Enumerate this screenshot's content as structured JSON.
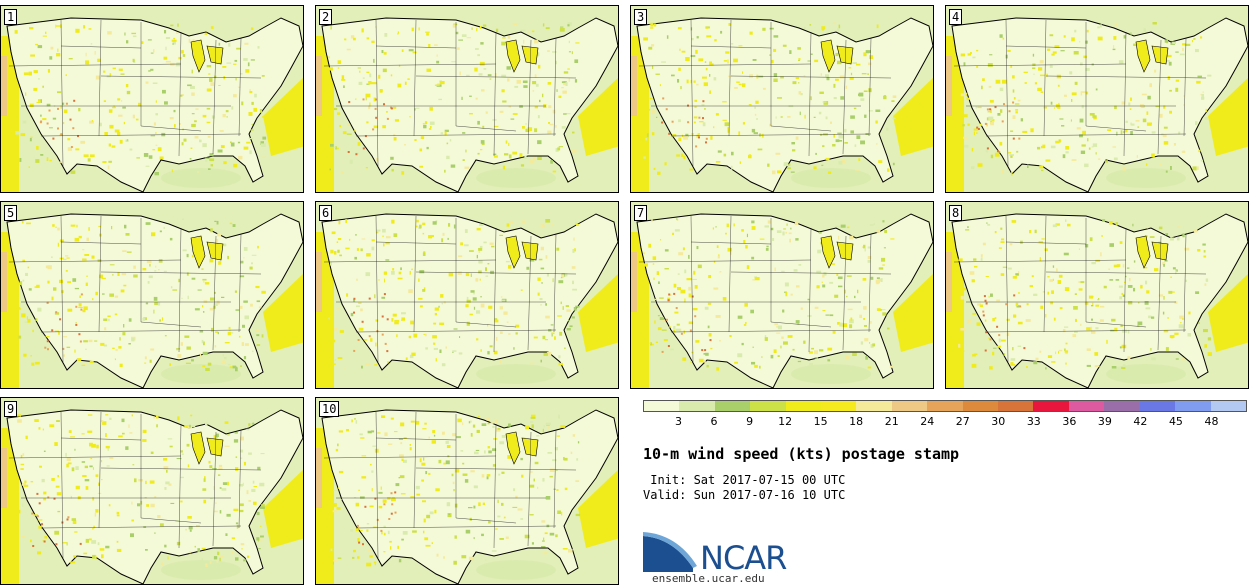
{
  "panels": [
    {
      "label": "1"
    },
    {
      "label": "2"
    },
    {
      "label": "3"
    },
    {
      "label": "4"
    },
    {
      "label": "5"
    },
    {
      "label": "6"
    },
    {
      "label": "7"
    },
    {
      "label": "8"
    },
    {
      "label": "9"
    },
    {
      "label": "10"
    }
  ],
  "legend": {
    "colors": [
      "#f4f9d7",
      "#d9ecae",
      "#a9cf6b",
      "#cce048",
      "#f0ec1c",
      "#f5ea20",
      "#f5ea9a",
      "#eec885",
      "#e6a45b",
      "#de8a3c",
      "#d8743a",
      "#e8153c",
      "#de5aa0",
      "#9a6ea8",
      "#6a78e6",
      "#7f9cf0",
      "#b4c9f2"
    ],
    "ticks": [
      "3",
      "6",
      "9",
      "12",
      "15",
      "18",
      "21",
      "24",
      "27",
      "30",
      "33",
      "36",
      "39",
      "42",
      "45",
      "48"
    ]
  },
  "title": "10-m wind speed (kts) postage stamp",
  "init": " Init: Sat 2017-07-15 00 UTC",
  "valid": "Valid: Sun 2017-07-16 10 UTC",
  "logo": {
    "name": "NCAR",
    "site": "ensemble.ucar.edu",
    "brand_color": "#1c4f8f"
  }
}
